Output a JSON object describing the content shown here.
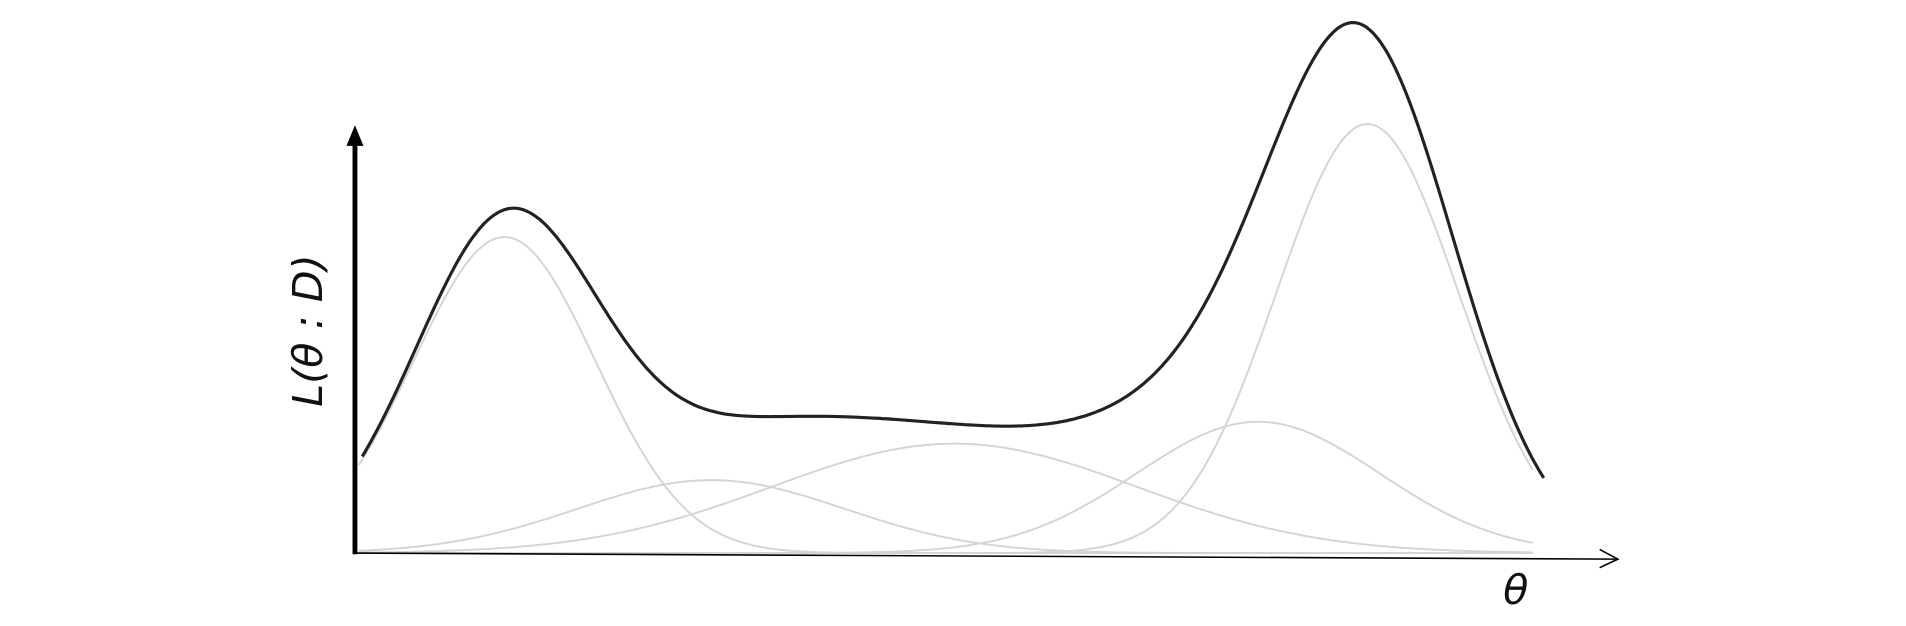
{
  "y_axis_label": "L(θ : D)",
  "x_axis_label": "θ"
}
